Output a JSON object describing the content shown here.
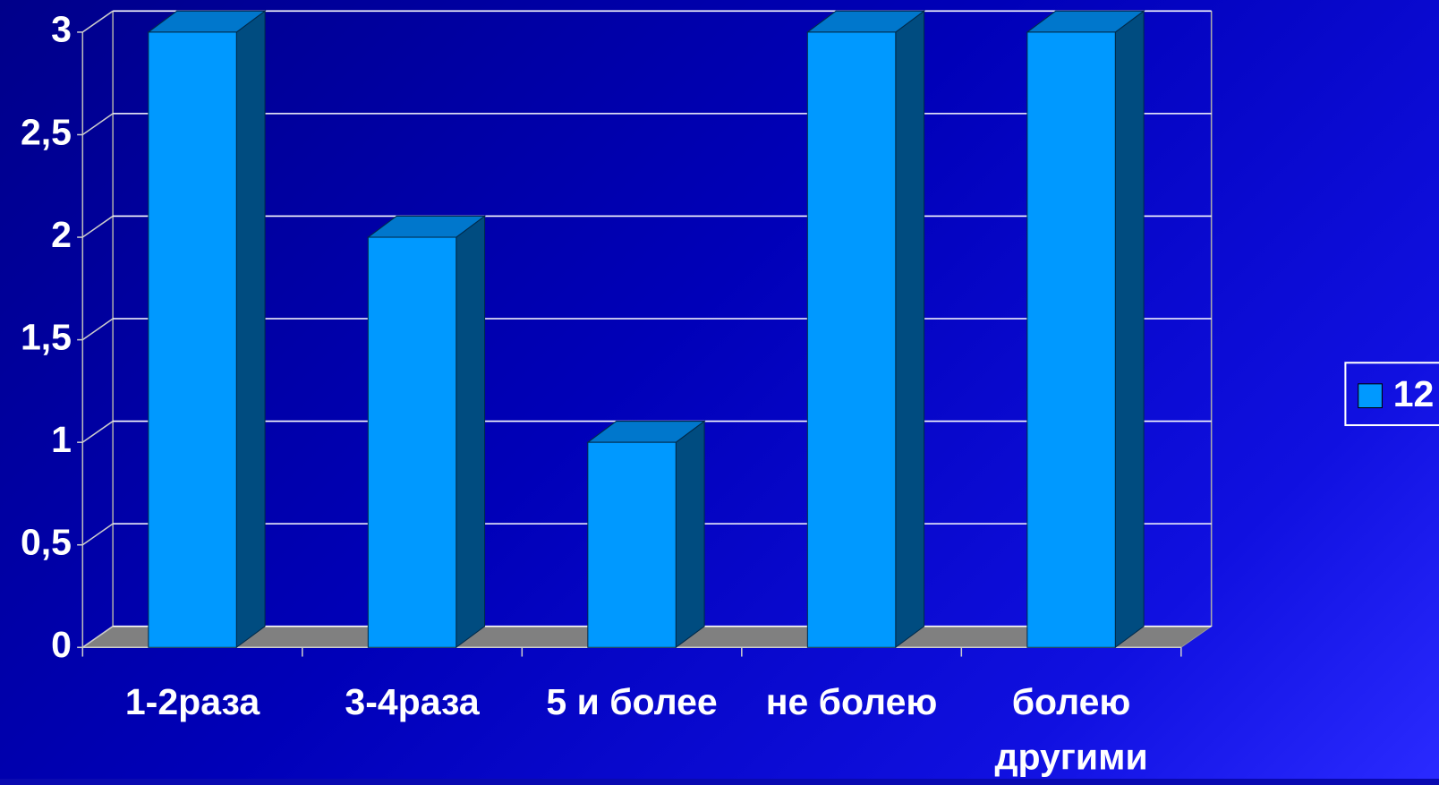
{
  "chart_data": {
    "type": "bar",
    "categories": [
      "1-2раза",
      "3-4раза",
      "5 и более",
      "не болею",
      "болею другими"
    ],
    "series": [
      {
        "name": "12",
        "color": "#0099ff",
        "values": [
          3,
          2,
          1,
          3,
          3
        ]
      }
    ],
    "ylim": [
      0,
      3
    ],
    "yticks": [
      0,
      {
        "value": 0.5,
        "label": "0,5"
      },
      1,
      {
        "value": 1.5,
        "label": "1,5"
      },
      2,
      {
        "value": 2.5,
        "label": "2,5"
      },
      3
    ],
    "grid": true,
    "legend": "right"
  }
}
